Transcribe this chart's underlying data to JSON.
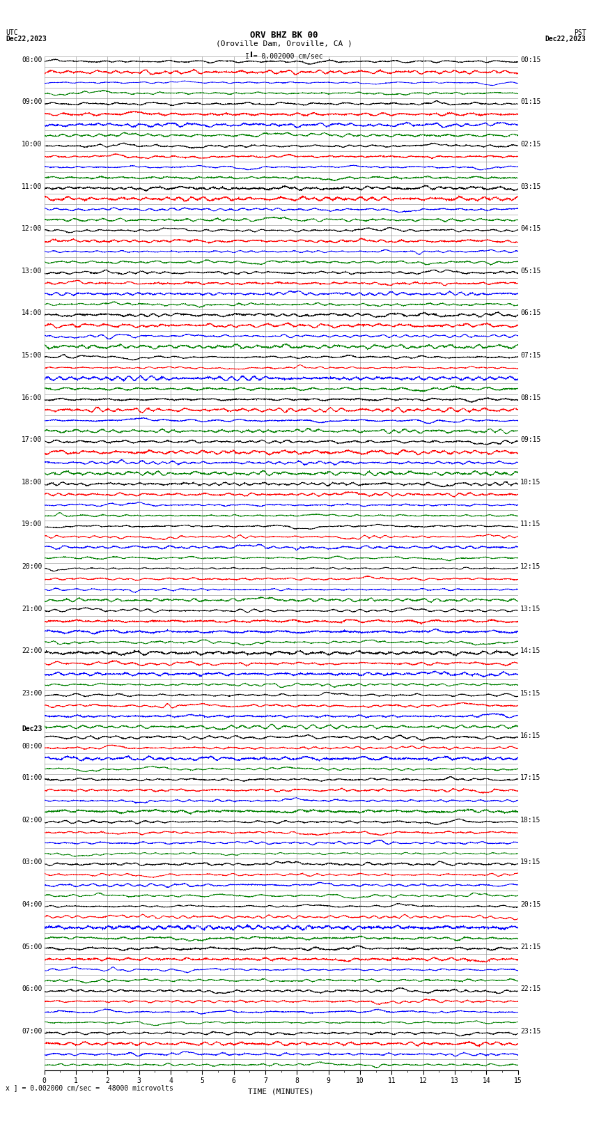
{
  "title_line1": "ORV BHZ BK 00",
  "title_line2": "(Oroville Dam, Oroville, CA )",
  "title_line3": "I = 0.002000 cm/sec",
  "left_label_top": "UTC",
  "left_label_date": "Dec22,2023",
  "right_label_top": "PST",
  "right_label_date": "Dec22,2023",
  "xlabel": "TIME (MINUTES)",
  "bottom_note": "x ] = 0.002000 cm/sec =  48000 microvolts",
  "colors": [
    "black",
    "red",
    "blue",
    "green"
  ],
  "utc_times": [
    "08:00",
    "",
    "",
    "",
    "09:00",
    "",
    "",
    "",
    "10:00",
    "",
    "",
    "",
    "11:00",
    "",
    "",
    "",
    "12:00",
    "",
    "",
    "",
    "13:00",
    "",
    "",
    "",
    "14:00",
    "",
    "",
    "",
    "15:00",
    "",
    "",
    "",
    "16:00",
    "",
    "",
    "",
    "17:00",
    "",
    "",
    "",
    "18:00",
    "",
    "",
    "",
    "19:00",
    "",
    "",
    "",
    "20:00",
    "",
    "",
    "",
    "21:00",
    "",
    "",
    "",
    "22:00",
    "",
    "",
    "",
    "23:00",
    "",
    "",
    "",
    "Dec23",
    "00:00",
    "",
    "",
    "01:00",
    "",
    "",
    "",
    "02:00",
    "",
    "",
    "",
    "03:00",
    "",
    "",
    "",
    "04:00",
    "",
    "",
    "",
    "05:00",
    "",
    "",
    "",
    "06:00",
    "",
    "",
    "",
    "07:00",
    "",
    "",
    ""
  ],
  "pst_times": [
    "00:15",
    "",
    "",
    "",
    "01:15",
    "",
    "",
    "",
    "02:15",
    "",
    "",
    "",
    "03:15",
    "",
    "",
    "",
    "04:15",
    "",
    "",
    "",
    "05:15",
    "",
    "",
    "",
    "06:15",
    "",
    "",
    "",
    "07:15",
    "",
    "",
    "",
    "08:15",
    "",
    "",
    "",
    "09:15",
    "",
    "",
    "",
    "10:15",
    "",
    "",
    "",
    "11:15",
    "",
    "",
    "",
    "12:15",
    "",
    "",
    "",
    "13:15",
    "",
    "",
    "",
    "14:15",
    "",
    "",
    "",
    "15:15",
    "",
    "",
    "",
    "16:15",
    "",
    "",
    "",
    "17:15",
    "",
    "",
    "",
    "18:15",
    "",
    "",
    "",
    "19:15",
    "",
    "",
    "",
    "20:15",
    "",
    "",
    "",
    "21:15",
    "",
    "",
    "",
    "22:15",
    "",
    "",
    "",
    "23:15",
    "",
    "",
    ""
  ],
  "num_rows": 96,
  "mins": 15,
  "xmin": 0,
  "xmax": 15,
  "amplitude_scale": 0.3,
  "noise_base": 0.025,
  "figsize": [
    8.5,
    16.13
  ],
  "dpi": 100,
  "bg_color": "white",
  "trace_lw": 0.5,
  "grid_color": "#888888",
  "grid_lw": 0.4,
  "font_size_title": 9,
  "font_size_labels": 7,
  "font_size_ticks": 7,
  "font_size_note": 7,
  "dec23_row": 64,
  "pts_per_row": 2700,
  "minor_tick_interval": 0.5
}
